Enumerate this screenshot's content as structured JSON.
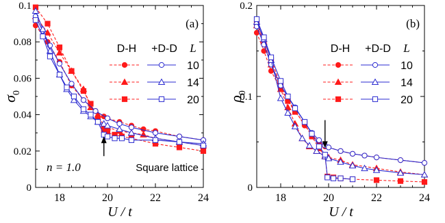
{
  "chart_data": [
    {
      "type": "line",
      "panel_label": "(a)",
      "ylabel_symbol": "σ",
      "ylabel_subscript": "0",
      "xlabel": "U / t",
      "xlim": [
        17,
        24
      ],
      "ylim": [
        0,
        0.1
      ],
      "xticks": [
        18,
        20,
        22,
        24
      ],
      "yticks": [
        0,
        0.02,
        0.04,
        0.06,
        0.08,
        0.1
      ],
      "ytick_labels": [
        "0",
        "0.02",
        "0.04",
        "0.06",
        "0.08",
        "0.1"
      ],
      "legend": {
        "col1": "D-H",
        "col2": "+D-D",
        "col3": "L",
        "sizes": [
          "10",
          "14",
          "20"
        ]
      },
      "annotations": {
        "n_label": "n = 1.0",
        "lattice": "Square lattice"
      },
      "arrow": {
        "x": 19.85,
        "y_from": 0.0172,
        "y_to": 0.0262,
        "direction": "up"
      },
      "series": [
        {
          "method": "D-H",
          "L": "10",
          "marker": "circle",
          "color": "#ff1a1a",
          "x": [
            17,
            17.5,
            18,
            18.5,
            19,
            19.5,
            19.85,
            20,
            20.5,
            21,
            21.5,
            22,
            23,
            24
          ],
          "y": [
            0.089,
            0.08,
            0.069,
            0.056,
            0.048,
            0.042,
            0.039,
            0.038,
            0.036,
            0.034,
            0.032,
            0.031,
            0.028,
            0.026
          ]
        },
        {
          "method": "D-H",
          "L": "14",
          "marker": "triangle",
          "color": "#ff1a1a",
          "x": [
            17,
            17.5,
            18,
            18.5,
            19,
            19.3,
            19.6,
            19.85,
            20,
            20.5,
            21,
            21.5,
            22,
            23,
            24
          ],
          "y": [
            0.094,
            0.085,
            0.074,
            0.064,
            0.054,
            0.044,
            0.04,
            0.034,
            0.033,
            0.031,
            0.03,
            0.029,
            0.027,
            0.025,
            0.023
          ]
        },
        {
          "method": "D-H",
          "L": "20",
          "marker": "square",
          "color": "#ff1a1a",
          "x": [
            17,
            17.5,
            18,
            18.5,
            19,
            19.3,
            19.6,
            19.85,
            20,
            20.3,
            20.6,
            21,
            22,
            23,
            24
          ],
          "y": [
            0.099,
            0.09,
            0.077,
            0.064,
            0.053,
            0.046,
            0.038,
            0.031,
            0.03,
            0.029,
            0.028,
            0.027,
            0.024,
            0.022,
            0.02
          ]
        },
        {
          "method": "+D-D",
          "L": "10",
          "marker": "circle",
          "color": "#2a2ad0",
          "x": [
            17,
            17.3,
            17.6,
            18,
            18.5,
            19,
            19.5,
            20,
            20.5,
            21,
            22,
            23,
            24
          ],
          "y": [
            0.094,
            0.086,
            0.078,
            0.068,
            0.057,
            0.048,
            0.042,
            0.038,
            0.035,
            0.033,
            0.03,
            0.028,
            0.026
          ]
        },
        {
          "method": "+D-D",
          "L": "14",
          "marker": "triangle",
          "color": "#2a2ad0",
          "x": [
            17,
            17.3,
            17.6,
            18,
            18.3,
            18.6,
            19,
            19.3,
            19.6,
            19.85,
            20,
            20.5,
            21,
            22,
            23,
            24
          ],
          "y": [
            0.097,
            0.087,
            0.075,
            0.062,
            0.054,
            0.048,
            0.042,
            0.039,
            0.036,
            0.035,
            0.034,
            0.032,
            0.03,
            0.027,
            0.025,
            0.024
          ]
        },
        {
          "method": "+D-D",
          "L": "20",
          "marker": "square",
          "color": "#2a2ad0",
          "x": [
            17,
            17.3,
            17.6,
            18,
            18.3,
            18.6,
            19,
            19.3,
            19.6,
            19.85,
            20,
            20.3,
            20.6,
            21,
            22,
            23,
            24
          ],
          "y": [
            0.092,
            0.083,
            0.072,
            0.062,
            0.055,
            0.05,
            0.043,
            0.04,
            0.036,
            0.029,
            0.028,
            0.027,
            0.027,
            0.026,
            0.026,
            0.025,
            0.023
          ]
        }
      ]
    },
    {
      "type": "line",
      "panel_label": "(b)",
      "ylabel_symbol": "ρ",
      "ylabel_subscript": "0",
      "xlabel": "U / t",
      "xlim": [
        17,
        24
      ],
      "ylim": [
        0,
        0.2
      ],
      "xticks": [
        18,
        20,
        22,
        24
      ],
      "yticks": [
        0,
        0.1,
        0.2
      ],
      "ytick_labels": [
        "0",
        "0.1",
        "0.2"
      ],
      "legend": {
        "col1": "D-H",
        "col2": "+D-D",
        "col3": "L",
        "sizes": [
          "10",
          "14",
          "20"
        ]
      },
      "arrow": {
        "x": 19.85,
        "y_from": 0.074,
        "y_to": 0.047,
        "direction": "down"
      },
      "series": [
        {
          "method": "D-H",
          "L": "10",
          "marker": "circle",
          "color": "#ff1a1a",
          "x": [
            17,
            17.3,
            17.6,
            18,
            18.3,
            18.6,
            19,
            19.3,
            19.6,
            19.85,
            20,
            20.5,
            21,
            21.5,
            22,
            23,
            24
          ],
          "y": [
            0.17,
            0.15,
            0.128,
            0.108,
            0.096,
            0.085,
            0.068,
            0.058,
            0.05,
            0.045,
            0.044,
            0.04,
            0.037,
            0.035,
            0.033,
            0.03,
            0.027
          ]
        },
        {
          "method": "D-H",
          "L": "14",
          "marker": "triangle",
          "color": "#ff1a1a",
          "x": [
            17,
            17.3,
            17.6,
            18,
            18.3,
            18.6,
            18.9,
            19.2,
            19.5,
            19.85,
            20,
            20.5,
            21,
            22,
            23,
            24
          ],
          "y": [
            0.178,
            0.16,
            0.135,
            0.108,
            0.088,
            0.07,
            0.054,
            0.045,
            0.04,
            0.035,
            0.033,
            0.03,
            0.025,
            0.021,
            0.017,
            0.014
          ]
        },
        {
          "method": "D-H",
          "L": "20",
          "marker": "square",
          "color": "#ff1a1a",
          "x": [
            17,
            17.3,
            17.6,
            18,
            18.3,
            18.6,
            19,
            19.3,
            19.6,
            19.85,
            19.95,
            20.2,
            20.5,
            21,
            22,
            23,
            24
          ],
          "y": [
            0.18,
            0.162,
            0.14,
            0.113,
            0.095,
            0.083,
            0.07,
            0.056,
            0.043,
            0.034,
            0.012,
            0.011,
            0.01,
            0.009,
            0.008,
            0.007,
            0.006
          ]
        },
        {
          "method": "+D-D",
          "L": "10",
          "marker": "circle",
          "color": "#2a2ad0",
          "x": [
            17,
            17.3,
            17.6,
            18,
            18.3,
            18.6,
            19,
            19.3,
            19.6,
            19.85,
            20,
            20.5,
            21,
            21.5,
            22,
            23,
            24
          ],
          "y": [
            0.177,
            0.157,
            0.135,
            0.112,
            0.1,
            0.088,
            0.072,
            0.06,
            0.052,
            0.046,
            0.044,
            0.04,
            0.037,
            0.035,
            0.033,
            0.03,
            0.027
          ]
        },
        {
          "method": "+D-D",
          "L": "14",
          "marker": "triangle",
          "color": "#2a2ad0",
          "x": [
            17,
            17.3,
            17.6,
            18,
            18.3,
            18.6,
            18.9,
            19.2,
            19.5,
            19.85,
            20,
            20.5,
            21,
            21.5,
            22,
            23,
            24
          ],
          "y": [
            0.182,
            0.163,
            0.14,
            0.098,
            0.082,
            0.067,
            0.054,
            0.046,
            0.04,
            0.034,
            0.032,
            0.028,
            0.024,
            0.021,
            0.019,
            0.016,
            0.014
          ]
        },
        {
          "method": "+D-D",
          "L": "20",
          "marker": "square",
          "color": "#2a2ad0",
          "x": [
            17,
            17.3,
            17.6,
            18,
            18.3,
            18.6,
            19,
            19.3,
            19.6,
            19.85,
            19.95,
            20.2,
            20.5,
            21
          ],
          "y": [
            0.185,
            0.165,
            0.143,
            0.117,
            0.1,
            0.087,
            0.072,
            0.059,
            0.045,
            0.036,
            0.011,
            0.01,
            0.01,
            0.009
          ]
        }
      ]
    }
  ]
}
